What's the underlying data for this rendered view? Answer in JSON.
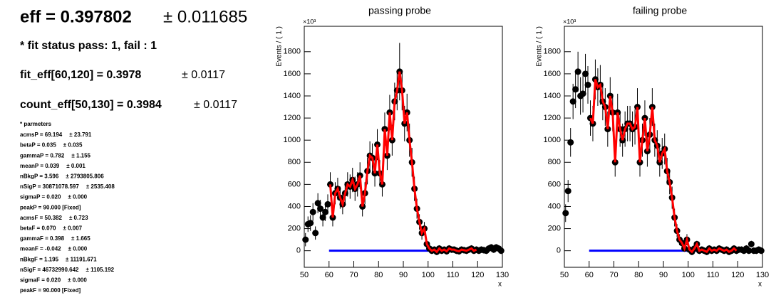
{
  "summary": {
    "eff": {
      "text": "eff = 0.397802",
      "error": "± 0.011685"
    },
    "fit_status": "* fit status pass: 1, fail : 1",
    "fit_eff": {
      "text": "fit_eff[60,120] = 0.3978",
      "error": "± 0.0117"
    },
    "count_eff": {
      "text": "count_eff[50,130] = 0.3984",
      "error": "± 0.0117"
    },
    "params_title": "* parmeters",
    "params": [
      [
        "acmsP = 69.194",
        "± 23.791"
      ],
      [
        "betaP = 0.035",
        "± 0.035"
      ],
      [
        "gammaP = 0.782",
        "± 1.155"
      ],
      [
        "meanP = 0.039",
        "± 0.001"
      ],
      [
        "nBkgP = 3.596",
        "± 2793805.806"
      ],
      [
        "nSigP = 30871078.597",
        "± 2535.408"
      ],
      [
        "sigmaP = 0.020",
        "± 0.000"
      ],
      [
        "peakP = 90.000 [Fixed]",
        null
      ],
      [
        "acmsF = 50.382",
        "± 0.723"
      ],
      [
        "betaF = 0.070",
        "± 0.007"
      ],
      [
        "gammaF = 0.398",
        "± 1.665"
      ],
      [
        "meanF = -0.042",
        "± 0.000"
      ],
      [
        "nBkgF = 1.195",
        "± 11191.671"
      ],
      [
        "nSigF = 46732990.642",
        "± 1105.192"
      ],
      [
        "sigmaF = 0.020",
        "± 0.000"
      ],
      [
        "peakF = 90.000 [Fixed]",
        null
      ]
    ]
  },
  "chart_data": [
    {
      "type": "scatter",
      "title": "passing probe",
      "x_label": "x",
      "y_label": "Events / ( 1 )",
      "y_multiplier": "×10³",
      "xlim": [
        50,
        130
      ],
      "ylim": [
        -150,
        2030
      ],
      "xticks": [
        50,
        60,
        70,
        80,
        90,
        100,
        110,
        120,
        130
      ],
      "yticks": [
        0,
        200,
        400,
        600,
        800,
        1000,
        1200,
        1400,
        1600,
        1800
      ],
      "points": {
        "color": "#000000",
        "x": [
          50.5,
          51.5,
          52.5,
          53.5,
          54.5,
          55.5,
          56.5,
          57.5,
          58.5,
          59.5,
          60.5,
          61.5,
          62.5,
          63.5,
          64.5,
          65.5,
          66.5,
          67.5,
          68.5,
          69.5,
          70.5,
          71.5,
          72.5,
          73.5,
          74.5,
          75.5,
          76.5,
          77.5,
          78.5,
          79.5,
          80.5,
          81.5,
          82.5,
          83.5,
          84.5,
          85.5,
          86.5,
          87.5,
          88.5,
          89.5,
          90.5,
          91.5,
          92.5,
          93.5,
          94.5,
          95.5,
          96.5,
          97.5,
          98.5,
          99.5,
          100.5,
          101.5,
          102.5,
          103.5,
          104.5,
          105.5,
          106.5,
          107.5,
          108.5,
          109.5,
          110.5,
          111.5,
          112.5,
          113.5,
          114.5,
          115.5,
          116.5,
          117.5,
          118.5,
          119.5,
          120.5,
          121.5,
          122.5,
          123.5,
          124.5,
          125.5,
          126.5,
          127.5,
          128.5,
          129.5
        ],
        "values": [
          100,
          240,
          250,
          350,
          160,
          430,
          380,
          300,
          350,
          420,
          600,
          300,
          520,
          560,
          480,
          420,
          520,
          600,
          580,
          640,
          560,
          600,
          680,
          400,
          520,
          720,
          860,
          840,
          700,
          960,
          700,
          600,
          1100,
          860,
          1250,
          1000,
          1350,
          1450,
          1620,
          1450,
          1150,
          1250,
          1000,
          800,
          560,
          380,
          260,
          160,
          200,
          60,
          20,
          0,
          10,
          -10,
          20,
          0,
          10,
          -5,
          20,
          10,
          10,
          0,
          -5,
          10,
          5,
          0,
          10,
          20,
          0,
          10,
          0,
          10,
          5,
          0,
          20,
          30,
          10,
          30,
          20,
          0
        ],
        "errors": [
          60,
          70,
          70,
          80,
          60,
          90,
          80,
          80,
          80,
          90,
          110,
          80,
          100,
          100,
          100,
          90,
          100,
          110,
          110,
          110,
          110,
          110,
          120,
          90,
          100,
          120,
          130,
          130,
          120,
          140,
          120,
          110,
          150,
          130,
          160,
          140,
          170,
          180,
          260,
          180,
          160,
          170,
          150,
          130,
          110,
          90,
          70,
          60,
          60,
          40,
          30,
          30,
          30,
          30,
          30,
          30,
          30,
          30,
          30,
          30,
          30,
          30,
          30,
          30,
          30,
          30,
          30,
          30,
          30,
          30,
          30,
          30,
          30,
          30,
          30,
          30,
          30,
          30,
          30,
          30
        ]
      },
      "fit": {
        "color": "#ff0000",
        "x": [
          60.5,
          61.5,
          62.5,
          63.5,
          64.5,
          65.5,
          66.5,
          67.5,
          68.5,
          69.5,
          70.5,
          71.5,
          72.5,
          73.5,
          74.5,
          75.5,
          76.5,
          77.5,
          78.5,
          79.5,
          80.5,
          81.5,
          82.5,
          83.5,
          84.5,
          85.5,
          86.5,
          87.5,
          88.5,
          89.5,
          90.5,
          91.5,
          92.5,
          93.5,
          94.5,
          95.5,
          96.5,
          97.5,
          98.5,
          99.5,
          100.5,
          101.5,
          102.5,
          103.5,
          104.5,
          105.5,
          106.5,
          107.5,
          108.5,
          109.5,
          110.5,
          111.5,
          112.5,
          113.5,
          114.5,
          115.5,
          116.5,
          117.5,
          118.5,
          119.5
        ],
        "values": [
          600,
          300,
          520,
          560,
          480,
          420,
          520,
          600,
          580,
          640,
          560,
          600,
          680,
          400,
          520,
          720,
          860,
          840,
          700,
          960,
          700,
          600,
          1100,
          860,
          1250,
          1000,
          1350,
          1450,
          1620,
          1450,
          1150,
          1250,
          1000,
          800,
          560,
          380,
          260,
          160,
          200,
          60,
          20,
          0,
          10,
          -10,
          20,
          0,
          10,
          -5,
          20,
          10,
          10,
          0,
          -5,
          10,
          5,
          0,
          10,
          20,
          0,
          10
        ]
      },
      "background": {
        "color": "#0000ff",
        "x": [
          60,
          120
        ],
        "values": [
          0,
          0
        ]
      }
    },
    {
      "type": "scatter",
      "title": "failing probe",
      "x_label": "x",
      "y_label": "Events / ( 1 )",
      "y_multiplier": "×10³",
      "xlim": [
        50,
        130
      ],
      "ylim": [
        -150,
        2030
      ],
      "xticks": [
        50,
        60,
        70,
        80,
        90,
        100,
        110,
        120,
        130
      ],
      "yticks": [
        0,
        200,
        400,
        600,
        800,
        1000,
        1200,
        1400,
        1600,
        1800
      ],
      "points": {
        "color": "#000000",
        "x": [
          50.5,
          51.5,
          52.5,
          53.5,
          54.5,
          55.5,
          56.5,
          57.5,
          58.5,
          59.5,
          60.5,
          61.5,
          62.5,
          63.5,
          64.5,
          65.5,
          66.5,
          67.5,
          68.5,
          69.5,
          70.5,
          71.5,
          72.5,
          73.5,
          74.5,
          75.5,
          76.5,
          77.5,
          78.5,
          79.5,
          80.5,
          81.5,
          82.5,
          83.5,
          84.5,
          85.5,
          86.5,
          87.5,
          88.5,
          89.5,
          90.5,
          91.5,
          92.5,
          93.5,
          94.5,
          95.5,
          96.5,
          97.5,
          98.5,
          99.5,
          100.5,
          101.5,
          102.5,
          103.5,
          104.5,
          105.5,
          106.5,
          107.5,
          108.5,
          109.5,
          110.5,
          111.5,
          112.5,
          113.5,
          114.5,
          115.5,
          116.5,
          117.5,
          118.5,
          119.5,
          120.5,
          121.5,
          122.5,
          123.5,
          124.5,
          125.5,
          126.5,
          127.5,
          128.5,
          129.5
        ],
        "values": [
          340,
          540,
          980,
          1350,
          1460,
          1620,
          1400,
          1420,
          1600,
          1500,
          1200,
          1150,
          1550,
          1480,
          1500,
          1350,
          1300,
          1100,
          1400,
          1250,
          800,
          1250,
          1100,
          1000,
          1100,
          1150,
          1150,
          1100,
          1120,
          1300,
          800,
          1000,
          1200,
          900,
          1050,
          1300,
          1000,
          950,
          800,
          880,
          920,
          720,
          620,
          480,
          300,
          180,
          100,
          70,
          20,
          100,
          10,
          -10,
          20,
          60,
          0,
          10,
          0,
          -10,
          20,
          0,
          10,
          0,
          20,
          10,
          0,
          10,
          -10,
          0,
          20,
          0,
          10,
          10,
          0,
          20,
          0,
          60,
          0,
          0,
          10,
          0
        ],
        "errors": [
          80,
          100,
          130,
          160,
          170,
          180,
          170,
          170,
          180,
          170,
          160,
          160,
          180,
          170,
          180,
          170,
          170,
          160,
          170,
          170,
          130,
          170,
          160,
          150,
          160,
          160,
          160,
          160,
          160,
          170,
          130,
          150,
          160,
          140,
          150,
          170,
          150,
          140,
          130,
          140,
          140,
          120,
          110,
          100,
          80,
          60,
          50,
          40,
          30,
          50,
          30,
          30,
          30,
          30,
          30,
          30,
          30,
          30,
          30,
          30,
          30,
          30,
          30,
          30,
          30,
          30,
          30,
          30,
          30,
          30,
          30,
          30,
          30,
          30,
          30,
          30,
          30,
          30,
          30,
          30
        ]
      },
      "fit": {
        "color": "#ff0000",
        "x": [
          60.5,
          61.5,
          62.5,
          63.5,
          64.5,
          65.5,
          66.5,
          67.5,
          68.5,
          69.5,
          70.5,
          71.5,
          72.5,
          73.5,
          74.5,
          75.5,
          76.5,
          77.5,
          78.5,
          79.5,
          80.5,
          81.5,
          82.5,
          83.5,
          84.5,
          85.5,
          86.5,
          87.5,
          88.5,
          89.5,
          90.5,
          91.5,
          92.5,
          93.5,
          94.5,
          95.5,
          96.5,
          97.5,
          98.5,
          99.5,
          100.5,
          101.5,
          102.5,
          103.5,
          104.5,
          105.5,
          106.5,
          107.5,
          108.5,
          109.5,
          110.5,
          111.5,
          112.5,
          113.5,
          114.5,
          115.5,
          116.5,
          117.5,
          118.5,
          119.5
        ],
        "values": [
          1200,
          1150,
          1550,
          1480,
          1500,
          1350,
          1300,
          1100,
          1400,
          1250,
          800,
          1250,
          1100,
          1000,
          1100,
          1150,
          1150,
          1100,
          1120,
          1300,
          800,
          1000,
          1200,
          900,
          1050,
          1300,
          1000,
          950,
          800,
          880,
          920,
          720,
          620,
          480,
          300,
          180,
          100,
          70,
          20,
          100,
          10,
          -10,
          20,
          60,
          0,
          10,
          0,
          -10,
          20,
          0,
          10,
          0,
          20,
          10,
          0,
          10,
          -10,
          0,
          20,
          0
        ]
      },
      "background": {
        "color": "#0000ff",
        "x": [
          60,
          120
        ],
        "values": [
          0,
          0
        ]
      }
    }
  ]
}
